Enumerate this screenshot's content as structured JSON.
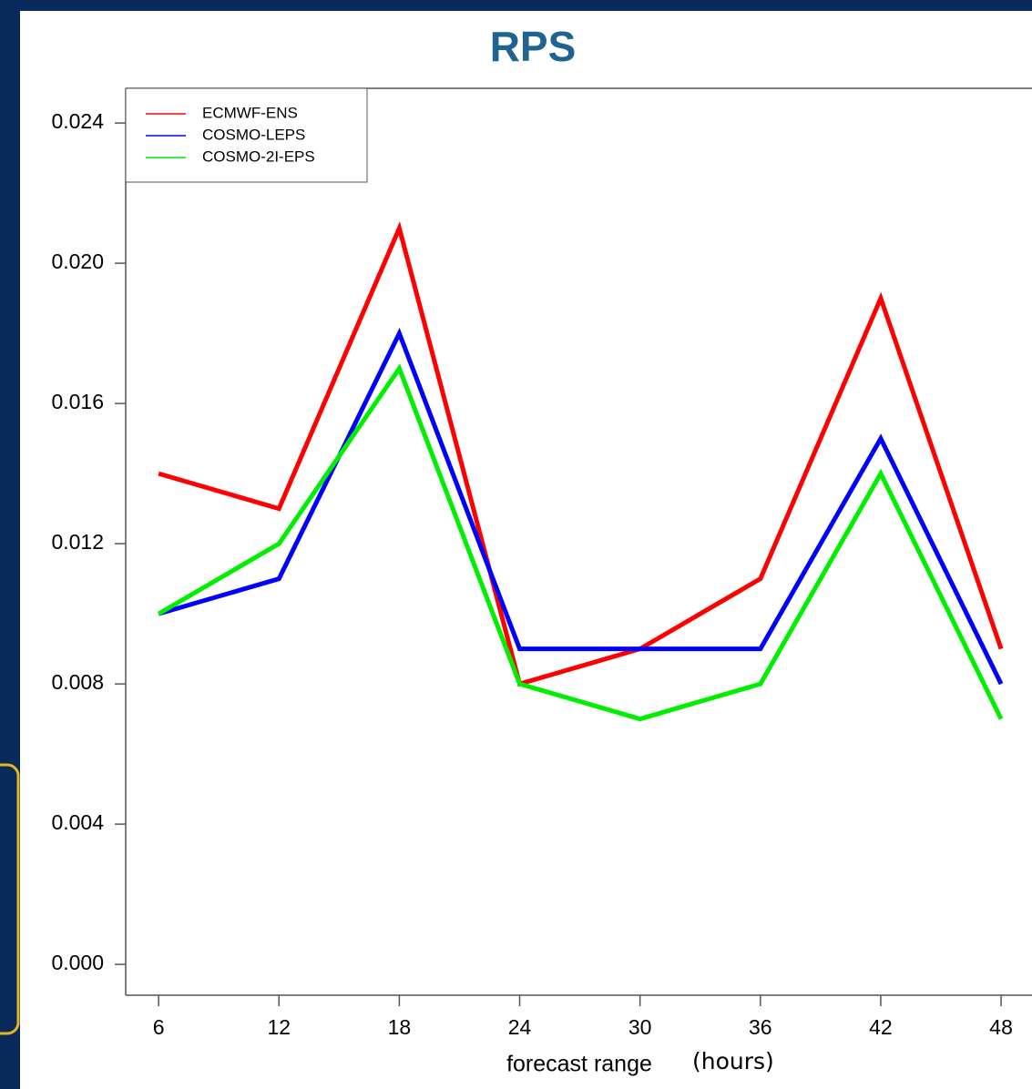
{
  "chart_data": {
    "type": "line",
    "title": "RPS",
    "x_label": "forecast range",
    "x_label_unit": "(hours)",
    "x": [
      6,
      12,
      18,
      24,
      30,
      36,
      42,
      48
    ],
    "series": [
      {
        "name": "ECMWF-ENS",
        "color": "#ff0000",
        "values": [
          0.014,
          0.013,
          0.021,
          0.008,
          0.009,
          0.011,
          0.019,
          0.009
        ]
      },
      {
        "name": "COSMO-LEPS",
        "color": "#0000ff",
        "values": [
          0.01,
          0.011,
          0.018,
          0.009,
          0.009,
          0.009,
          0.015,
          0.008
        ]
      },
      {
        "name": "COSMO-2I-EPS",
        "color": "#00ee00",
        "values": [
          0.01,
          0.012,
          0.017,
          0.008,
          0.007,
          0.008,
          0.014,
          0.007
        ]
      }
    ],
    "xlim": [
      4.36,
      49.54
    ],
    "xticks": [
      6,
      12,
      18,
      24,
      30,
      36,
      42,
      48
    ],
    "ylim": [
      -0.00088,
      0.02499
    ],
    "yticks": [
      {
        "value": 0,
        "label": "0.000"
      },
      0.004,
      0.008,
      0.012,
      0.016,
      {
        "value": 0.02,
        "label": "0.020"
      },
      0.024
    ],
    "legend": "top-left"
  }
}
